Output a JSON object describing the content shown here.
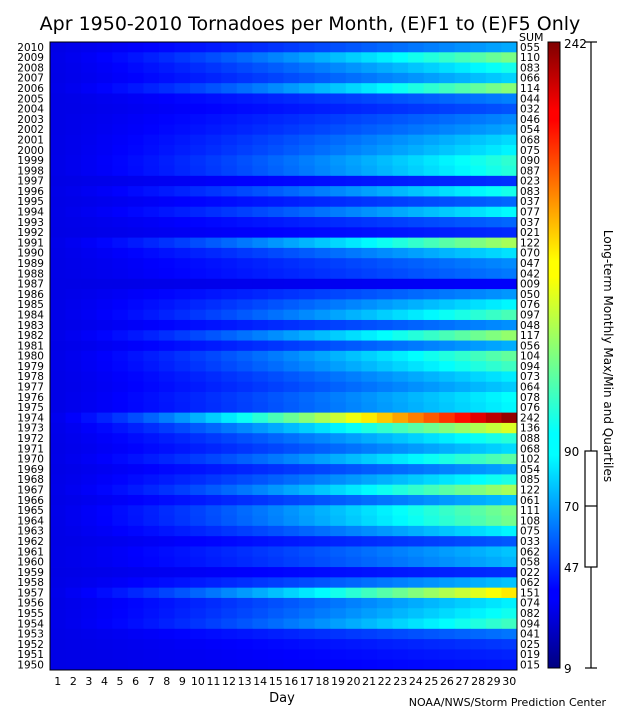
{
  "title": "Apr 1950-2010 Tornadoes per Month, (E)F1 to (E)F5 Only",
  "xlabel": "Day",
  "sum_header": "SUM",
  "credit": "NOAA/NWS/Storm Prediction Center",
  "colorbar_label": "Long-term Monthly Max/Min and Quartiles",
  "colorbar_ticks": [
    "242",
    "90",
    "70",
    "47",
    "9"
  ],
  "chart_data": {
    "type": "heatmap",
    "title": "Apr 1950-2010 Tornadoes per Month, (E)F1 to (E)F5 Only",
    "xlabel": "Day",
    "ylabel": "",
    "x": [
      1,
      2,
      3,
      4,
      5,
      6,
      7,
      8,
      9,
      10,
      11,
      12,
      13,
      14,
      15,
      16,
      17,
      18,
      19,
      20,
      21,
      22,
      23,
      24,
      25,
      26,
      27,
      28,
      29,
      30
    ],
    "colormap": "jet",
    "color_range": [
      9,
      242
    ],
    "monthly_stats": {
      "min": 9,
      "q1": 47,
      "median": 70,
      "q3": 90,
      "max": 242
    },
    "rows": [
      {
        "year": "2010",
        "sum": "055"
      },
      {
        "year": "2009",
        "sum": "110"
      },
      {
        "year": "2008",
        "sum": "083"
      },
      {
        "year": "2007",
        "sum": "066"
      },
      {
        "year": "2006",
        "sum": "114"
      },
      {
        "year": "2005",
        "sum": "044"
      },
      {
        "year": "2004",
        "sum": "032"
      },
      {
        "year": "2003",
        "sum": "046"
      },
      {
        "year": "2002",
        "sum": "054"
      },
      {
        "year": "2001",
        "sum": "068"
      },
      {
        "year": "2000",
        "sum": "075"
      },
      {
        "year": "1999",
        "sum": "090"
      },
      {
        "year": "1998",
        "sum": "087"
      },
      {
        "year": "1997",
        "sum": "023"
      },
      {
        "year": "1996",
        "sum": "083"
      },
      {
        "year": "1995",
        "sum": "037"
      },
      {
        "year": "1994",
        "sum": "077"
      },
      {
        "year": "1993",
        "sum": "037"
      },
      {
        "year": "1992",
        "sum": "021"
      },
      {
        "year": "1991",
        "sum": "122"
      },
      {
        "year": "1990",
        "sum": "070"
      },
      {
        "year": "1989",
        "sum": "047"
      },
      {
        "year": "1988",
        "sum": "042"
      },
      {
        "year": "1987",
        "sum": "009"
      },
      {
        "year": "1986",
        "sum": "050"
      },
      {
        "year": "1985",
        "sum": "076"
      },
      {
        "year": "1984",
        "sum": "097"
      },
      {
        "year": "1983",
        "sum": "048"
      },
      {
        "year": "1982",
        "sum": "117"
      },
      {
        "year": "1981",
        "sum": "056"
      },
      {
        "year": "1980",
        "sum": "104"
      },
      {
        "year": "1979",
        "sum": "094"
      },
      {
        "year": "1978",
        "sum": "073"
      },
      {
        "year": "1977",
        "sum": "064"
      },
      {
        "year": "1976",
        "sum": "078"
      },
      {
        "year": "1975",
        "sum": "076"
      },
      {
        "year": "1974",
        "sum": "242"
      },
      {
        "year": "1973",
        "sum": "136"
      },
      {
        "year": "1972",
        "sum": "088"
      },
      {
        "year": "1971",
        "sum": "068"
      },
      {
        "year": "1970",
        "sum": "102"
      },
      {
        "year": "1969",
        "sum": "054"
      },
      {
        "year": "1968",
        "sum": "085"
      },
      {
        "year": "1967",
        "sum": "122"
      },
      {
        "year": "1966",
        "sum": "061"
      },
      {
        "year": "1965",
        "sum": "111"
      },
      {
        "year": "1964",
        "sum": "108"
      },
      {
        "year": "1963",
        "sum": "075"
      },
      {
        "year": "1962",
        "sum": "033"
      },
      {
        "year": "1961",
        "sum": "062"
      },
      {
        "year": "1960",
        "sum": "058"
      },
      {
        "year": "1959",
        "sum": "022"
      },
      {
        "year": "1958",
        "sum": "062"
      },
      {
        "year": "1957",
        "sum": "151"
      },
      {
        "year": "1956",
        "sum": "074"
      },
      {
        "year": "1955",
        "sum": "082"
      },
      {
        "year": "1954",
        "sum": "094"
      },
      {
        "year": "1953",
        "sum": "041"
      },
      {
        "year": "1952",
        "sum": "025"
      },
      {
        "year": "1951",
        "sum": "019"
      },
      {
        "year": "1950",
        "sum": "015"
      }
    ]
  }
}
